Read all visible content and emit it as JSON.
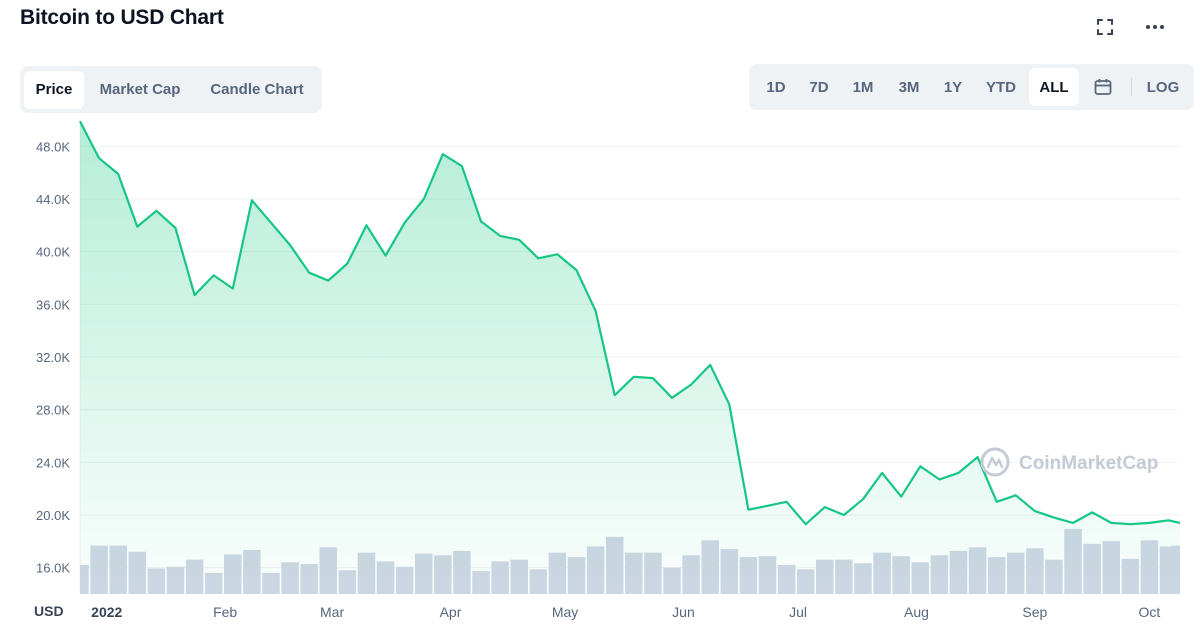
{
  "header": {
    "title": "Bitcoin to USD Chart"
  },
  "view_tabs": [
    {
      "label": "Price",
      "active": true
    },
    {
      "label": "Market Cap",
      "active": false
    },
    {
      "label": "Candle Chart",
      "active": false
    }
  ],
  "range_tabs": [
    {
      "label": "1D",
      "active": false
    },
    {
      "label": "7D",
      "active": false
    },
    {
      "label": "1M",
      "active": false
    },
    {
      "label": "3M",
      "active": false
    },
    {
      "label": "1Y",
      "active": false
    },
    {
      "label": "YTD",
      "active": false
    },
    {
      "label": "ALL",
      "active": true
    }
  ],
  "log_label": "LOG",
  "icons": {
    "fullscreen": "fullscreen-icon",
    "more": "more-horizontal-icon",
    "calendar": "calendar-icon"
  },
  "watermark": "CoinMarketCap",
  "colors": {
    "line": "#16c784",
    "volume": "#cfd6e4",
    "active_tab_text": "#0d1421",
    "tab_text": "#58667e",
    "tab_background": "#eff2f5"
  },
  "chart_data": {
    "type": "area",
    "title": "Bitcoin to USD Chart",
    "ylabel": "USD",
    "ylim": [
      14000,
      50000
    ],
    "yticks": [
      16000,
      20000,
      24000,
      28000,
      32000,
      36000,
      40000,
      44000,
      48000
    ],
    "ytick_labels": [
      "16.0K",
      "20.0K",
      "24.0K",
      "28.0K",
      "32.0K",
      "36.0K",
      "40.0K",
      "44.0K",
      "48.0K"
    ],
    "xticks": [
      {
        "label": "2022",
        "t": 1.0
      },
      {
        "label": "Feb",
        "t": 32
      },
      {
        "label": "Mar",
        "t": 60
      },
      {
        "label": "Apr",
        "t": 91
      },
      {
        "label": "May",
        "t": 121
      },
      {
        "label": "Jun",
        "t": 152
      },
      {
        "label": "Jul",
        "t": 182
      },
      {
        "label": "Aug",
        "t": 213
      },
      {
        "label": "Sep",
        "t": 244
      },
      {
        "label": "Oct",
        "t": 274
      }
    ],
    "x_range_days": [
      -6,
      282
    ],
    "grid": true,
    "series": [
      {
        "values_t": [
          -6,
          -1,
          4,
          9,
          14,
          19,
          24,
          29,
          34,
          39,
          44,
          49,
          54,
          59,
          64,
          69,
          74,
          79,
          84,
          89,
          94,
          99,
          104,
          109,
          114,
          119,
          124,
          129,
          134,
          139,
          144,
          149,
          154,
          159,
          164,
          169,
          174,
          179,
          184,
          189,
          194,
          199,
          204,
          209,
          214,
          219,
          224,
          229,
          234,
          239,
          244,
          249,
          254,
          259,
          264,
          269,
          274,
          279,
          282
        ],
        "values": [
          49900,
          47100,
          45900,
          41900,
          43100,
          41800,
          36700,
          38200,
          37200,
          43900,
          42200,
          40500,
          38400,
          37800,
          39100,
          42000,
          39700,
          42200,
          44000,
          47400,
          46500,
          42300,
          41200,
          40900,
          39500,
          39800,
          38600,
          35500,
          29100,
          30500,
          30400,
          28900,
          29900,
          31400,
          28400,
          20400,
          20700,
          21000,
          19300,
          20600,
          20000,
          21200,
          23200,
          21400,
          23700,
          22700,
          23200,
          24400,
          21000,
          21500,
          20300,
          19800,
          19400,
          20200,
          19400,
          19300,
          19400,
          19600,
          19400
        ]
      },
      {
        "name": "Volume",
        "bars_t": [
          -6,
          -1,
          4,
          9,
          14,
          19,
          24,
          29,
          34,
          39,
          44,
          49,
          54,
          59,
          64,
          69,
          74,
          79,
          84,
          89,
          94,
          99,
          104,
          109,
          114,
          119,
          124,
          129,
          134,
          139,
          144,
          149,
          154,
          159,
          164,
          169,
          174,
          179,
          184,
          189,
          194,
          199,
          204,
          209,
          214,
          219,
          224,
          229,
          234,
          239,
          244,
          249,
          254,
          259,
          264,
          269,
          274,
          279,
          282
        ],
        "volume_relative": [
          0.33,
          0.55,
          0.55,
          0.48,
          0.29,
          0.31,
          0.39,
          0.24,
          0.45,
          0.5,
          0.24,
          0.36,
          0.34,
          0.53,
          0.27,
          0.47,
          0.37,
          0.31,
          0.46,
          0.44,
          0.49,
          0.26,
          0.37,
          0.39,
          0.28,
          0.47,
          0.42,
          0.54,
          0.65,
          0.47,
          0.47,
          0.3,
          0.44,
          0.61,
          0.51,
          0.42,
          0.43,
          0.33,
          0.28,
          0.39,
          0.39,
          0.35,
          0.47,
          0.43,
          0.36,
          0.44,
          0.49,
          0.53,
          0.42,
          0.47,
          0.52,
          0.39,
          0.74,
          0.57,
          0.6,
          0.4,
          0.61,
          0.54,
          0.55
        ]
      }
    ]
  }
}
